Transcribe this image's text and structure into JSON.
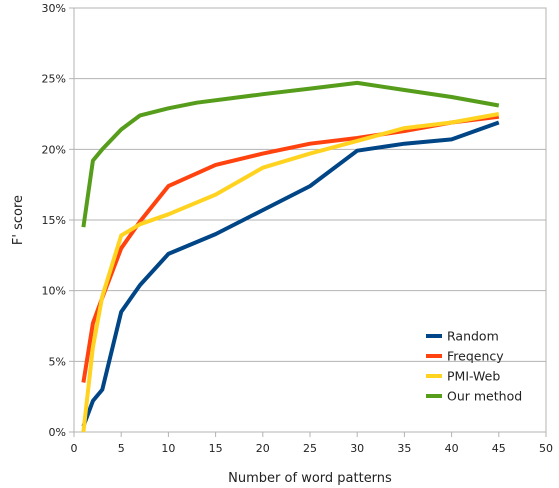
{
  "chart_data": {
    "type": "line",
    "title": "",
    "xlabel": "Number of word patterns",
    "ylabel": "F' score",
    "xlim": [
      0,
      50
    ],
    "ylim": [
      0,
      30
    ],
    "x_ticks": [
      "0",
      "5",
      "10",
      "15",
      "20",
      "25",
      "30",
      "35",
      "40",
      "45",
      "50"
    ],
    "y_ticks": [
      "0%",
      "5%",
      "10%",
      "15%",
      "20%",
      "25%",
      "30%"
    ],
    "grid": "horizontal",
    "legend_position": "bottom-right",
    "series": [
      {
        "name": "Random",
        "color": "#004586",
        "points": [
          [
            1,
            0.4
          ],
          [
            2,
            2.2
          ],
          [
            3,
            3.0
          ],
          [
            5,
            8.5
          ],
          [
            7,
            10.4
          ],
          [
            10,
            12.6
          ],
          [
            15,
            14.0
          ],
          [
            20,
            15.7
          ],
          [
            25,
            17.4
          ],
          [
            30,
            19.9
          ],
          [
            35,
            20.4
          ],
          [
            40,
            20.7
          ],
          [
            45,
            21.9
          ]
        ]
      },
      {
        "name": "Freqency",
        "color": "#ff420e",
        "points": [
          [
            1,
            3.5
          ],
          [
            2,
            7.7
          ],
          [
            3,
            9.5
          ],
          [
            5,
            13.0
          ],
          [
            7,
            14.9
          ],
          [
            10,
            17.4
          ],
          [
            15,
            18.9
          ],
          [
            20,
            19.7
          ],
          [
            25,
            20.4
          ],
          [
            30,
            20.8
          ],
          [
            35,
            21.3
          ],
          [
            40,
            21.9
          ],
          [
            45,
            22.3
          ]
        ]
      },
      {
        "name": "PMI-Web",
        "color": "#ffd320",
        "points": [
          [
            1,
            0.0
          ],
          [
            2,
            6.0
          ],
          [
            3,
            9.6
          ],
          [
            5,
            13.9
          ],
          [
            7,
            14.7
          ],
          [
            10,
            15.4
          ],
          [
            15,
            16.8
          ],
          [
            20,
            18.7
          ],
          [
            25,
            19.7
          ],
          [
            30,
            20.6
          ],
          [
            35,
            21.5
          ],
          [
            40,
            21.9
          ],
          [
            45,
            22.5
          ]
        ]
      },
      {
        "name": "Our method",
        "color": "#579d1c",
        "points": [
          [
            1,
            14.5
          ],
          [
            2,
            19.2
          ],
          [
            3,
            20.0
          ],
          [
            5,
            21.4
          ],
          [
            7,
            22.4
          ],
          [
            10,
            22.9
          ],
          [
            13,
            23.3
          ],
          [
            20,
            23.9
          ],
          [
            25,
            24.3
          ],
          [
            30,
            24.7
          ],
          [
            35,
            24.2
          ],
          [
            40,
            23.7
          ],
          [
            45,
            23.1
          ]
        ]
      }
    ]
  }
}
